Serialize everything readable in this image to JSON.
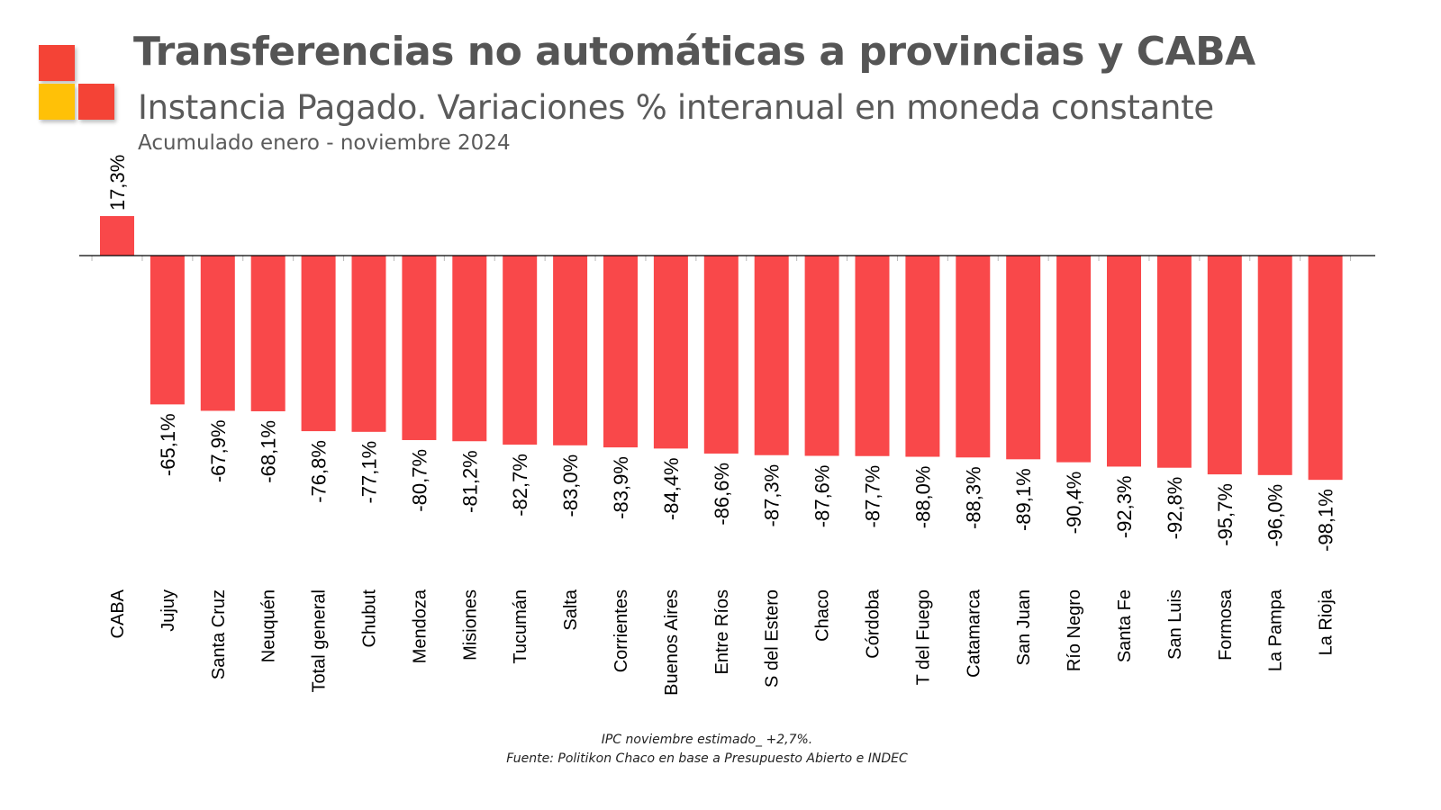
{
  "header": {
    "title": "Transferencias no automáticas a provincias y CABA",
    "subtitle": "Instancia Pagado. Variaciones % interanual en moneda constante",
    "period": "Acumulado enero - noviembre 2024"
  },
  "logo": {
    "colors": [
      "#f44336",
      "#ffc107",
      "#f44336"
    ]
  },
  "footer": {
    "note": "IPC noviembre estimado_  +2,7%.",
    "source": "Fuente: Politikon Chaco en base a Presupuesto Abierto e INDEC"
  },
  "chart_data": {
    "type": "bar",
    "title": "Transferencias no automáticas a provincias y CABA",
    "subtitle": "Instancia Pagado. Variaciones % interanual en moneda constante",
    "xlabel": "",
    "ylabel": "",
    "ylim": [
      -100,
      20
    ],
    "grid": false,
    "legend": "none",
    "bar_color": "#f9484a",
    "categories": [
      "CABA",
      "Jujuy",
      "Santa Cruz",
      "Neuquén",
      "Total general",
      "Chubut",
      "Mendoza",
      "Misiones",
      "Tucumán",
      "Salta",
      "Corrientes",
      "Buenos Aires",
      "Entre Ríos",
      "S del Estero",
      "Chaco",
      "Córdoba",
      "T del Fuego",
      "Catamarca",
      "San Juan",
      "Río Negro",
      "Santa Fe",
      "San Luis",
      "Formosa",
      "La Pampa",
      "La Rioja"
    ],
    "values": [
      17.3,
      -65.1,
      -67.9,
      -68.1,
      -76.8,
      -77.1,
      -80.7,
      -81.2,
      -82.7,
      -83.0,
      -83.9,
      -84.4,
      -86.6,
      -87.3,
      -87.6,
      -87.7,
      -88.0,
      -88.3,
      -89.1,
      -90.4,
      -92.3,
      -92.8,
      -95.7,
      -96.0,
      -98.1
    ],
    "data_labels": [
      "17,3%",
      "-65,1%",
      "-67,9%",
      "-68,1%",
      "-76,8%",
      "-77,1%",
      "-80,7%",
      "-81,2%",
      "-82,7%",
      "-83,0%",
      "-83,9%",
      "-84,4%",
      "-86,6%",
      "-87,3%",
      "-87,6%",
      "-87,7%",
      "-88,0%",
      "-88,3%",
      "-89,1%",
      "-90,4%",
      "-92,3%",
      "-92,8%",
      "-95,7%",
      "-96,0%",
      "-98,1%"
    ]
  }
}
